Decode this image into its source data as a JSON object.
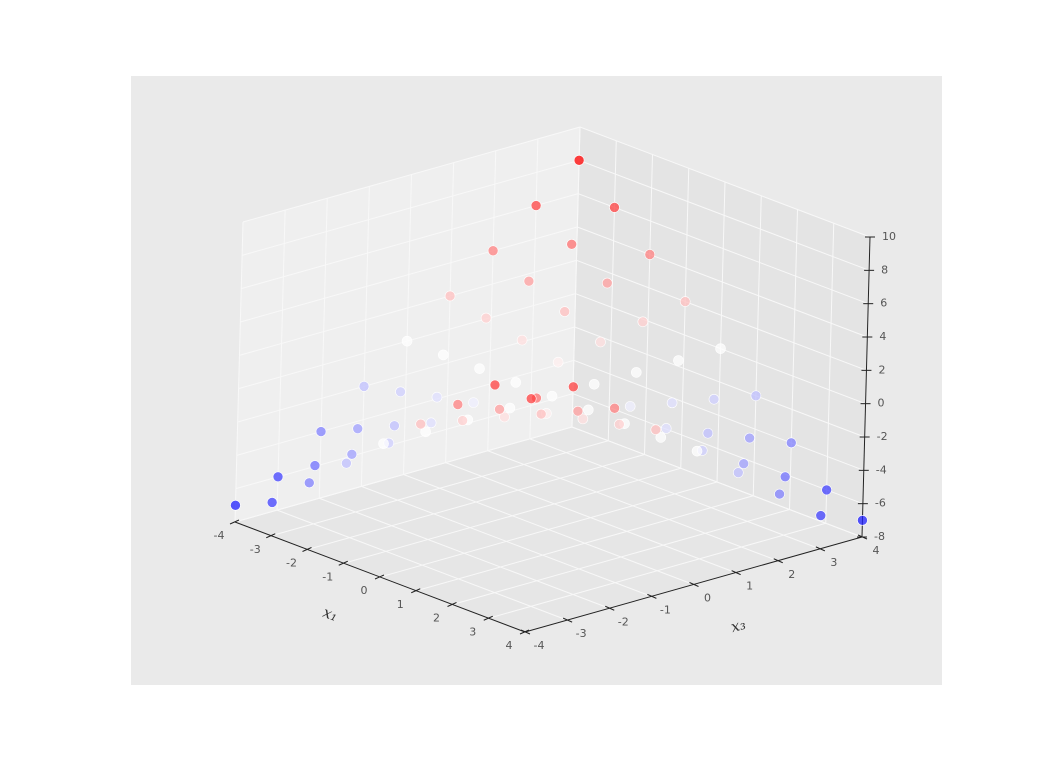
{
  "chart_data": {
    "type": "scatter3d",
    "xlabel": "x₁",
    "ylabel": "x₃",
    "xlim": [
      -4,
      4
    ],
    "ylim": [
      -4,
      4
    ],
    "zlim": [
      -8,
      10
    ],
    "xticks": [
      -4,
      -3,
      -2,
      -1,
      0,
      1,
      2,
      3,
      4
    ],
    "yticks": [
      -4,
      -3,
      -2,
      -1,
      0,
      1,
      2,
      3,
      4
    ],
    "zticks": [
      -8,
      -6,
      -4,
      -2,
      0,
      2,
      4,
      6,
      8,
      10
    ],
    "grid": true,
    "colormap": "bwr",
    "x": [
      -4,
      -4,
      -4,
      -4,
      -4,
      -4,
      -4,
      -4,
      -4,
      -3,
      -3,
      -3,
      -3,
      -3,
      -3,
      -3,
      -3,
      -3,
      -2,
      -2,
      -2,
      -2,
      -2,
      -2,
      -2,
      -2,
      -2,
      -1,
      -1,
      -1,
      -1,
      -1,
      -1,
      -1,
      -1,
      -1,
      0,
      0,
      0,
      0,
      0,
      0,
      0,
      0,
      0,
      1,
      1,
      1,
      1,
      1,
      1,
      1,
      1,
      1,
      2,
      2,
      2,
      2,
      2,
      2,
      2,
      2,
      2,
      3,
      3,
      3,
      3,
      3,
      3,
      3,
      3,
      3,
      4,
      4,
      4,
      4,
      4,
      4,
      4,
      4,
      4
    ],
    "y": [
      4,
      3,
      2,
      1,
      0,
      -1,
      -2,
      -3,
      -4,
      4,
      3,
      2,
      1,
      0,
      -1,
      -2,
      -3,
      -4,
      4,
      3,
      2,
      1,
      0,
      -1,
      -2,
      -3,
      -4,
      4,
      3,
      2,
      1,
      0,
      -1,
      -2,
      -3,
      -4,
      4,
      3,
      2,
      1,
      0,
      -1,
      -2,
      -3,
      -4,
      4,
      3,
      2,
      1,
      0,
      -1,
      -2,
      -3,
      -4,
      4,
      3,
      2,
      1,
      0,
      -1,
      -2,
      -3,
      -4,
      4,
      3,
      2,
      1,
      0,
      -1,
      -2,
      -3,
      -4,
      4,
      3,
      2,
      1,
      0,
      -1,
      -2,
      -3,
      -4
    ],
    "z": [
      8,
      6,
      4,
      2,
      0,
      -2,
      -4,
      -6,
      -7,
      6,
      4.5,
      3,
      1.5,
      0,
      -1.5,
      -3,
      -4.5,
      -6,
      4,
      3,
      2,
      1,
      0,
      -1,
      -2,
      -3,
      -4,
      2,
      1.5,
      1,
      0.5,
      0,
      -0.5,
      -1,
      -1.5,
      -2,
      0,
      0,
      0,
      0,
      0,
      0,
      0,
      0,
      0,
      -2,
      -1.5,
      -1,
      -0.5,
      0,
      0.5,
      1,
      1.5,
      2,
      -4,
      -3,
      -2,
      -1,
      0,
      1,
      2,
      3,
      4,
      -6,
      -4.5,
      -3,
      -1.5,
      0,
      1.5,
      3,
      4.5,
      6,
      -7,
      -6,
      -4,
      -2,
      0,
      2,
      4,
      6,
      6
    ]
  }
}
